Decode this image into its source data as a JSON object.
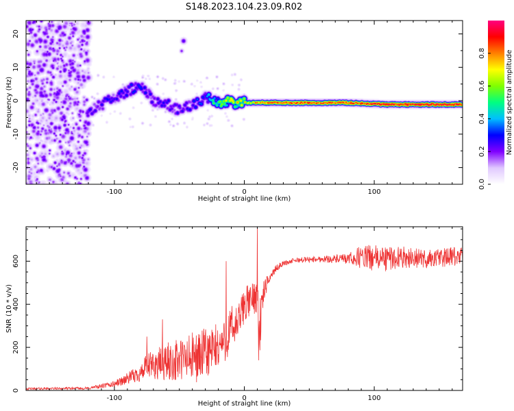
{
  "title": "S148.2023.104.23.09.R02",
  "chart_data": [
    {
      "type": "heatmap",
      "xlabel": "Height of straight line (km)",
      "ylabel": "Frequency (Hz)",
      "xlim": [
        -168,
        168
      ],
      "ylim": [
        -25,
        24
      ],
      "xticks": [
        -100,
        0,
        100
      ],
      "yticks": [
        -20,
        -10,
        0,
        10,
        20
      ],
      "colorbar": {
        "label": "Normalized spectral amplitude",
        "range": [
          0,
          1
        ],
        "ticks": [
          0.0,
          0.2,
          0.4,
          0.6,
          0.8
        ],
        "tick_labels": [
          "0.0",
          "0.2",
          "0.4",
          "0.6",
          "0.8"
        ],
        "colors": [
          "#ffffff",
          "#e0c8ff",
          "#8000ff",
          "#0000ff",
          "#00bfff",
          "#00ff80",
          "#80ff00",
          "#ffff00",
          "#ff8000",
          "#ff0000",
          "#ff0080"
        ]
      },
      "features": {
        "noise_region_x": [
          -168,
          -120
        ],
        "signal_path_x": [
          -120,
          -80,
          -70,
          -60,
          -50,
          -40,
          -30,
          -20,
          -10,
          0,
          20,
          50,
          80,
          110,
          168
        ],
        "signal_path_y": [
          -3,
          5,
          0,
          -1,
          -3,
          -1,
          1,
          0,
          -0.5,
          -0.5,
          -0.5,
          -0.5,
          -0.5,
          -1,
          -1
        ],
        "signal_path_amp": [
          0.25,
          0.3,
          0.25,
          0.28,
          0.25,
          0.3,
          0.35,
          0.6,
          0.7,
          0.75,
          0.9,
          0.9,
          0.9,
          0.98,
          0.98
        ],
        "blob_x": -47,
        "blob_y": 18
      }
    },
    {
      "type": "line",
      "xlabel": "Height of straight line (km)",
      "ylabel": "SNR (10 * v/v)",
      "xlim": [
        -168,
        168
      ],
      "ylim": [
        0,
        760
      ],
      "xticks": [
        -100,
        0,
        100
      ],
      "yticks": [
        0,
        200,
        400,
        600
      ],
      "color": "#ee3333",
      "envelope": {
        "x": [
          -168,
          -120,
          -100,
          -80,
          -75,
          -60,
          -40,
          -25,
          -15,
          -10,
          -5,
          0,
          5,
          10,
          12,
          15,
          20,
          25,
          30,
          40,
          60,
          80,
          90,
          100,
          110,
          120,
          140,
          160,
          168
        ],
        "mean": [
          8,
          10,
          30,
          80,
          110,
          130,
          150,
          180,
          230,
          280,
          310,
          400,
          420,
          450,
          300,
          460,
          530,
          570,
          590,
          605,
          610,
          610,
          620,
          615,
          610,
          620,
          610,
          620,
          620
        ],
        "amp": [
          5,
          6,
          15,
          40,
          60,
          90,
          120,
          120,
          100,
          120,
          80,
          90,
          70,
          90,
          150,
          50,
          20,
          15,
          12,
          12,
          15,
          25,
          55,
          60,
          60,
          50,
          45,
          45,
          45
        ]
      },
      "spikes": [
        {
          "x": -75,
          "y": 250
        },
        {
          "x": -63,
          "y": 330
        },
        {
          "x": -14,
          "y": 600
        },
        {
          "x": 10,
          "y": 760
        },
        {
          "x": 11,
          "y": 140
        }
      ]
    }
  ]
}
